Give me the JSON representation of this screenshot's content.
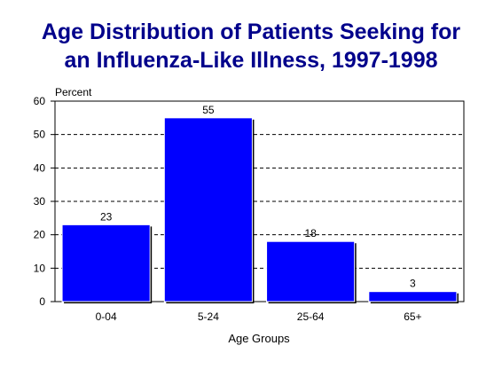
{
  "chart_data": {
    "type": "bar",
    "title_lines": [
      "Age Distribution of Patients Seeking for",
      "an Influenza-Like Illness, 1997-1998"
    ],
    "xlabel": "Age Groups",
    "ylabel": "Percent",
    "categories": [
      "0-04",
      "5-24",
      "25-64",
      "65+"
    ],
    "values": [
      23,
      55,
      18,
      3
    ],
    "data_labels": [
      "23",
      "55",
      "18",
      "3"
    ],
    "ylim": [
      0,
      60
    ],
    "yticks": [
      0,
      10,
      20,
      30,
      40,
      50,
      60
    ],
    "grid": true,
    "legend": "none",
    "bar_color": "#0000ff",
    "title_color": "#00008b"
  }
}
